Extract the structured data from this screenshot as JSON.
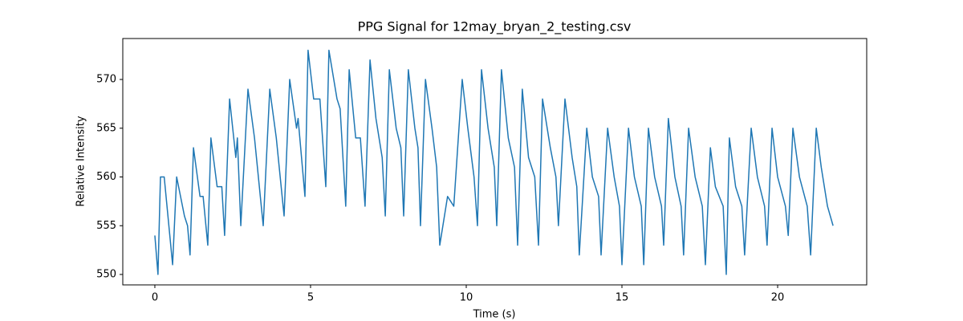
{
  "chart_data": {
    "type": "line",
    "title": "PPG Signal for 12may_bryan_2_testing.csv",
    "x_label": "Time (s)",
    "y_label": "Relative Intensity",
    "xlim": [
      -1.03,
      22.86
    ],
    "ylim": [
      548.93,
      574.2
    ],
    "xticks": [
      0,
      5,
      10,
      15,
      20
    ],
    "yticks": [
      550,
      555,
      560,
      565,
      570
    ],
    "x": [
      0,
      0.1,
      0.18,
      0.3,
      0.45,
      0.57,
      0.7,
      0.95,
      1.05,
      1.13,
      1.24,
      1.45,
      1.55,
      1.7,
      1.8,
      2.0,
      2.15,
      2.24,
      2.4,
      2.6,
      2.65,
      2.76,
      2.99,
      3.2,
      3.48,
      3.69,
      3.9,
      4.15,
      4.33,
      4.55,
      4.6,
      4.82,
      4.92,
      5.1,
      5.3,
      5.49,
      5.59,
      5.85,
      5.95,
      6.13,
      6.24,
      6.45,
      6.6,
      6.75,
      6.91,
      7.1,
      7.3,
      7.4,
      7.53,
      7.75,
      7.9,
      7.99,
      8.14,
      8.35,
      8.45,
      8.53,
      8.69,
      8.9,
      9.05,
      9.15,
      9.4,
      9.6,
      9.87,
      10.05,
      10.25,
      10.36,
      10.49,
      10.7,
      10.9,
      10.98,
      11.13,
      11.35,
      11.55,
      11.65,
      11.8,
      12.0,
      12.2,
      12.32,
      12.45,
      12.7,
      12.88,
      12.96,
      13.17,
      13.4,
      13.55,
      13.63,
      13.87,
      14.05,
      14.25,
      14.33,
      14.54,
      14.75,
      14.92,
      15.0,
      15.21,
      15.4,
      15.62,
      15.7,
      15.85,
      16.05,
      16.27,
      16.34,
      16.49,
      16.7,
      16.9,
      16.98,
      17.14,
      17.35,
      17.58,
      17.68,
      17.84,
      18.0,
      18.25,
      18.35,
      18.45,
      18.65,
      18.85,
      18.94,
      19.15,
      19.35,
      19.58,
      19.66,
      19.82,
      20.0,
      20.25,
      20.34,
      20.49,
      20.7,
      20.95,
      21.06,
      21.24,
      21.4,
      21.6,
      21.78
    ],
    "series": [
      {
        "color": "#1f77b4",
        "values": [
          554,
          550,
          560,
          560,
          555,
          551,
          560,
          556,
          555,
          552,
          563,
          558,
          558,
          553,
          564,
          559,
          559,
          554,
          568,
          562,
          564,
          555,
          569,
          564,
          555,
          569,
          564,
          556,
          570,
          565,
          566,
          558,
          573,
          568,
          568,
          559,
          573,
          568,
          567,
          557,
          571,
          564,
          564,
          557,
          572,
          566,
          562,
          556,
          571,
          565,
          563,
          556,
          571,
          565,
          563,
          555,
          570,
          565,
          561,
          553,
          558,
          557,
          570,
          565,
          560,
          555,
          571,
          565,
          561,
          555,
          571,
          564,
          561,
          553,
          569,
          562,
          560,
          553,
          568,
          563,
          560,
          555,
          568,
          562,
          559,
          552,
          565,
          560,
          558,
          552,
          565,
          560,
          557,
          551,
          565,
          560,
          557,
          551,
          565,
          560,
          557,
          553,
          566,
          560,
          557,
          552,
          565,
          560,
          557,
          551,
          563,
          559,
          557,
          550,
          564,
          559,
          557,
          552,
          565,
          560,
          557,
          553,
          565,
          560,
          557,
          554,
          565,
          560,
          557,
          552,
          565,
          561,
          557,
          555
        ]
      }
    ]
  }
}
